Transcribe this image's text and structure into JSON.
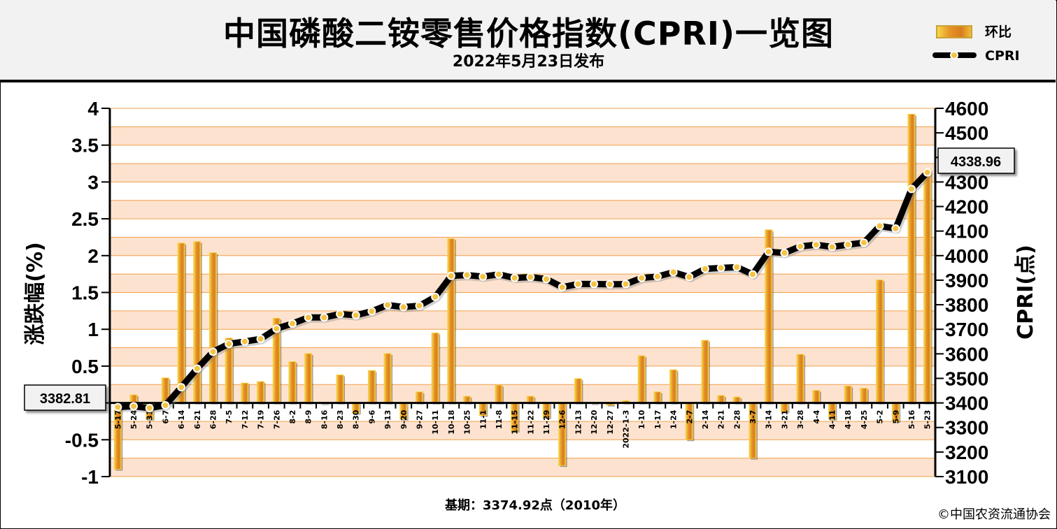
{
  "header": {
    "title": "中国磷酸二铵零售价格指数(CPRI)一览图",
    "subtitle": "2022年5月23日发布"
  },
  "footer": {
    "base_note": "基期：3374.92点（2010年）",
    "copyright": "©中国农资流通协会"
  },
  "callouts": {
    "start_value": "3382.81",
    "end_value": "4338.96"
  },
  "colors": {
    "bar_fill": "#e8962a",
    "bar_edge": "#f4d03f",
    "band_light": "#fde3cf",
    "grid_line": "#f0a04b",
    "line": "#000000",
    "marker_fill": "#f5c242"
  },
  "chart_data": {
    "type": "bar+line",
    "categories": [
      "5-17",
      "5-24",
      "5-31",
      "6-7",
      "6-14",
      "6-21",
      "6-28",
      "7-5",
      "7-12",
      "7-19",
      "7-26",
      "8-2",
      "8-9",
      "8-16",
      "8-23",
      "8-30",
      "9-6",
      "9-13",
      "9-20",
      "9-27",
      "10-11",
      "10-18",
      "10-25",
      "11-1",
      "11-8",
      "11-15",
      "11-22",
      "11-29",
      "12-6",
      "12-13",
      "12-20",
      "12-27",
      "2022-1-3",
      "1-10",
      "1-17",
      "1-24",
      "2-7",
      "2-14",
      "2-21",
      "2-28",
      "3-7",
      "3-14",
      "3-21",
      "3-28",
      "4-4",
      "4-11",
      "4-18",
      "4-25",
      "5-2",
      "5-9",
      "5-16",
      "5-23"
    ],
    "series": [
      {
        "name": "环比",
        "type": "bar",
        "axis": "left",
        "values": [
          -0.9,
          0.11,
          -0.22,
          0.34,
          2.17,
          2.19,
          2.04,
          0.88,
          0.27,
          0.29,
          1.15,
          0.56,
          0.67,
          0.0,
          0.38,
          -0.14,
          0.44,
          0.67,
          -0.22,
          0.15,
          0.95,
          2.23,
          0.09,
          -0.17,
          0.24,
          -0.38,
          0.09,
          -0.2,
          -0.85,
          0.33,
          0.0,
          -0.03,
          0.03,
          0.64,
          0.15,
          0.45,
          -0.5,
          0.85,
          0.1,
          0.08,
          -0.75,
          2.35,
          -0.12,
          0.66,
          0.17,
          -0.22,
          0.23,
          0.2,
          1.67,
          -0.25,
          3.92,
          3.17
        ]
      },
      {
        "name": "CPRI",
        "type": "line",
        "axis": "right",
        "values": [
          3382.81,
          3386.5,
          3379.0,
          3390.5,
          3464.0,
          3539.8,
          3608.5,
          3640.5,
          3650.2,
          3660.8,
          3702.5,
          3723.3,
          3748.0,
          3748.0,
          3762.3,
          3757.0,
          3773.5,
          3798.8,
          3790.5,
          3796.0,
          3832.0,
          3917.5,
          3921.0,
          3914.5,
          3923.8,
          3909.0,
          3912.5,
          3904.7,
          3871.5,
          3884.3,
          3884.3,
          3883.1,
          3884.2,
          3909.0,
          3914.9,
          3932.5,
          3912.8,
          3946.2,
          3950.0,
          3953.2,
          3923.6,
          4015.8,
          4011.0,
          4037.6,
          4044.4,
          4035.5,
          4044.8,
          4052.9,
          4120.6,
          4110.3,
          4271.5,
          4338.96
        ]
      }
    ],
    "left_axis": {
      "title": "涨跌幅(%)",
      "ylim": [
        -1,
        4
      ],
      "ticks": [
        "-1",
        "-0.5",
        "0",
        "0.5",
        "1",
        "1.5",
        "2",
        "2.5",
        "3",
        "3.5",
        "4"
      ]
    },
    "right_axis": {
      "title": "CPRI(点)",
      "ylim": [
        3100,
        4600
      ],
      "ticks": [
        "3100",
        "3200",
        "3300",
        "3400",
        "3500",
        "3600",
        "3700",
        "3800",
        "3900",
        "4000",
        "4100",
        "4200",
        "4300",
        "4400",
        "4500",
        "4600"
      ]
    },
    "legend": {
      "placement": "top-right",
      "entries": [
        "环比",
        "CPRI"
      ]
    },
    "grid": true
  }
}
